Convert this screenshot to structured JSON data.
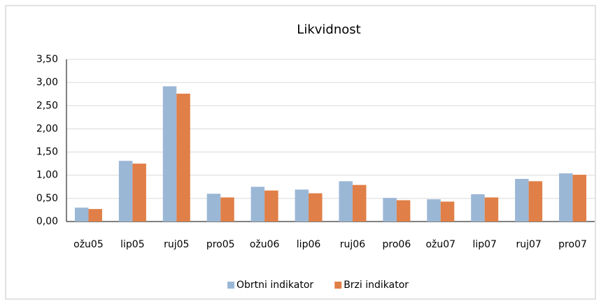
{
  "chart_data": {
    "type": "bar",
    "title": "Likvidnost",
    "categories": [
      "ožu05",
      "lip05",
      "ruj05",
      "pro05",
      "ožu06",
      "lip06",
      "ruj06",
      "pro06",
      "ožu07",
      "lip07",
      "ruj07",
      "pro07"
    ],
    "series": [
      {
        "name": "Obrtni indikator",
        "color": "#9bb7d6",
        "values": [
          0.3,
          1.31,
          2.92,
          0.6,
          0.75,
          0.69,
          0.87,
          0.51,
          0.48,
          0.59,
          0.92,
          1.04
        ]
      },
      {
        "name": "Brzi indikator",
        "color": "#e07f47",
        "values": [
          0.27,
          1.25,
          2.76,
          0.52,
          0.67,
          0.61,
          0.79,
          0.46,
          0.43,
          0.52,
          0.87,
          1.01
        ]
      }
    ],
    "ylim": [
      0,
      3.5
    ],
    "yticks": [
      {
        "value": 0,
        "label": "0,00"
      },
      {
        "value": 0.5,
        "label": "0,50"
      },
      {
        "value": 1,
        "label": "1,00"
      },
      {
        "value": 1.5,
        "label": "1,50"
      },
      {
        "value": 2,
        "label": "2,00"
      },
      {
        "value": 2.5,
        "label": "2,50"
      },
      {
        "value": 3,
        "label": "3,00"
      },
      {
        "value": 3.5,
        "label": "3,50"
      }
    ],
    "grid": true,
    "legend": "bottom"
  }
}
